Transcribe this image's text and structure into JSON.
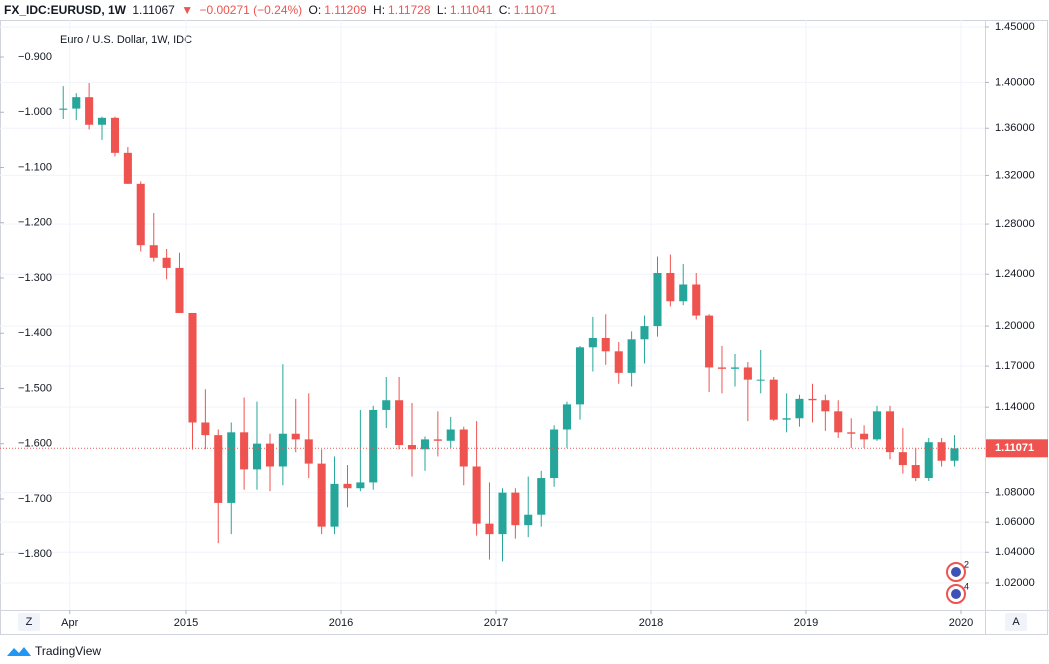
{
  "header": {
    "symbol": "FX_IDC:EURUSD, 1W",
    "last": "1.11067",
    "arrow": "▼",
    "change": "−0.00271 (−0.24%)",
    "o_label": "O:",
    "o": "1.11209",
    "h_label": "H:",
    "h": "1.11728",
    "l_label": "L:",
    "l": "1.11041",
    "c_label": "C:",
    "c": "1.11071"
  },
  "chart_data": {
    "type": "candlestick",
    "title": "Euro / U.S. Dollar, 1W, IDC",
    "up_color": "#26a69a",
    "down_color": "#ef5350",
    "log_scale": true,
    "grid": true,
    "x": [
      2014.208,
      2014.292,
      2014.375,
      2014.458,
      2014.542,
      2014.625,
      2014.708,
      2014.792,
      2014.875,
      2014.958,
      2015.042,
      2015.125,
      2015.208,
      2015.292,
      2015.375,
      2015.458,
      2015.542,
      2015.625,
      2015.708,
      2015.792,
      2015.875,
      2015.958,
      2016.042,
      2016.125,
      2016.208,
      2016.292,
      2016.375,
      2016.458,
      2016.542,
      2016.625,
      2016.708,
      2016.792,
      2016.875,
      2016.958,
      2017.042,
      2017.125,
      2017.208,
      2017.292,
      2017.375,
      2017.458,
      2017.542,
      2017.625,
      2017.708,
      2017.792,
      2017.875,
      2017.958,
      2018.042,
      2018.125,
      2018.208,
      2018.292,
      2018.375,
      2018.458,
      2018.542,
      2018.625,
      2018.708,
      2018.792,
      2018.875,
      2018.958,
      2019.042,
      2019.125,
      2019.208,
      2019.292,
      2019.375,
      2019.458,
      2019.542,
      2019.625,
      2019.708,
      2019.792,
      2019.875,
      2019.958
    ],
    "open": [
      1.376,
      1.377,
      1.387,
      1.363,
      1.369,
      1.339,
      1.313,
      1.263,
      1.253,
      1.245,
      1.21,
      1.129,
      1.12,
      1.073,
      1.122,
      1.096,
      1.114,
      1.098,
      1.121,
      1.117,
      1.1,
      1.057,
      1.086,
      1.083,
      1.087,
      1.138,
      1.145,
      1.113,
      1.11,
      1.117,
      1.116,
      1.124,
      1.098,
      1.059,
      1.052,
      1.08,
      1.058,
      1.065,
      1.09,
      1.124,
      1.142,
      1.184,
      1.191,
      1.181,
      1.165,
      1.19,
      1.2,
      1.241,
      1.219,
      1.232,
      1.208,
      1.169,
      1.168,
      1.169,
      1.16,
      1.16,
      1.131,
      1.132,
      1.146,
      1.145,
      1.137,
      1.122,
      1.121,
      1.117,
      1.137,
      1.108,
      1.099,
      1.09,
      1.115,
      1.102
    ],
    "high": [
      1.3967,
      1.3905,
      1.3995,
      1.37,
      1.37,
      1.344,
      1.315,
      1.289,
      1.26,
      1.257,
      1.21,
      1.153,
      1.124,
      1.129,
      1.147,
      1.144,
      1.121,
      1.1714,
      1.146,
      1.15,
      1.11,
      1.105,
      1.099,
      1.138,
      1.141,
      1.162,
      1.162,
      1.143,
      1.119,
      1.137,
      1.133,
      1.126,
      1.13,
      1.087,
      1.083,
      1.083,
      1.091,
      1.095,
      1.127,
      1.144,
      1.185,
      1.207,
      1.209,
      1.188,
      1.196,
      1.208,
      1.254,
      1.2556,
      1.248,
      1.241,
      1.209,
      1.185,
      1.179,
      1.173,
      1.182,
      1.162,
      1.15,
      1.149,
      1.157,
      1.149,
      1.145,
      1.132,
      1.127,
      1.141,
      1.141,
      1.125,
      1.111,
      1.118,
      1.118,
      1.12
    ],
    "low": [
      1.368,
      1.367,
      1.359,
      1.35,
      1.336,
      1.313,
      1.258,
      1.25,
      1.236,
      1.21,
      1.1098,
      1.11,
      1.046,
      1.052,
      1.082,
      1.082,
      1.081,
      1.085,
      1.108,
      1.09,
      1.052,
      1.052,
      1.07,
      1.081,
      1.082,
      1.125,
      1.11,
      1.091,
      1.095,
      1.105,
      1.111,
      1.085,
      1.051,
      1.0352,
      1.034,
      1.049,
      1.05,
      1.057,
      1.084,
      1.111,
      1.131,
      1.166,
      1.171,
      1.157,
      1.155,
      1.172,
      1.192,
      1.215,
      1.216,
      1.205,
      1.151,
      1.15,
      1.155,
      1.13,
      1.15,
      1.13,
      1.122,
      1.126,
      1.129,
      1.123,
      1.118,
      1.111,
      1.111,
      1.116,
      1.103,
      1.093,
      1.0879,
      1.088,
      1.098,
      1.098
    ],
    "close": [
      1.377,
      1.387,
      1.363,
      1.369,
      1.339,
      1.313,
      1.263,
      1.253,
      1.245,
      1.21,
      1.129,
      1.12,
      1.073,
      1.122,
      1.096,
      1.114,
      1.098,
      1.121,
      1.117,
      1.1,
      1.057,
      1.086,
      1.083,
      1.087,
      1.138,
      1.145,
      1.113,
      1.11,
      1.117,
      1.116,
      1.124,
      1.098,
      1.059,
      1.052,
      1.08,
      1.058,
      1.065,
      1.09,
      1.124,
      1.142,
      1.184,
      1.191,
      1.181,
      1.165,
      1.19,
      1.2,
      1.241,
      1.219,
      1.232,
      1.208,
      1.169,
      1.168,
      1.169,
      1.16,
      1.16,
      1.131,
      1.132,
      1.146,
      1.145,
      1.137,
      1.122,
      1.121,
      1.117,
      1.137,
      1.108,
      1.099,
      1.09,
      1.115,
      1.102,
      1.1107
    ],
    "xlim": [
      2013.8,
      2020.155
    ],
    "xticks": [
      {
        "value": 2014.25,
        "label": "Apr"
      },
      2015,
      2016,
      2017,
      2018,
      2019,
      2020
    ],
    "ylim": [
      1.0027,
      1.4564
    ],
    "yticks": [
      {
        "value": 1.02,
        "label": "1.02000"
      },
      {
        "value": 1.04,
        "label": "1.04000"
      },
      {
        "value": 1.06,
        "label": "1.06000"
      },
      {
        "value": 1.08,
        "label": "1.08000"
      },
      {
        "value": 1.14,
        "label": "1.14000"
      },
      {
        "value": 1.17,
        "label": "1.17000"
      },
      {
        "value": 1.2,
        "label": "1.20000"
      },
      {
        "value": 1.24,
        "label": "1.24000"
      },
      {
        "value": 1.28,
        "label": "1.28000"
      },
      {
        "value": 1.32,
        "label": "1.32000"
      },
      {
        "value": 1.36,
        "label": "1.36000"
      },
      {
        "value": 1.4,
        "label": "1.40000"
      },
      {
        "value": 1.45,
        "label": "1.45000"
      }
    ],
    "y2lim": [
      -1.901,
      -0.833
    ],
    "y2ticks": [
      {
        "value": -0.9,
        "label": "−0.900"
      },
      {
        "value": -1.0,
        "label": "−1.000"
      },
      {
        "value": -1.1,
        "label": "−1.100"
      },
      {
        "value": -1.2,
        "label": "−1.200"
      },
      {
        "value": -1.3,
        "label": "−1.300"
      },
      {
        "value": -1.4,
        "label": "−1.400"
      },
      {
        "value": -1.5,
        "label": "−1.500"
      },
      {
        "value": -1.6,
        "label": "−1.600"
      },
      {
        "value": -1.7,
        "label": "−1.700"
      },
      {
        "value": -1.8,
        "label": "−1.800"
      }
    ],
    "last_price": {
      "value": 1.11071,
      "label": "1.11071"
    },
    "events": [
      "2",
      "4"
    ]
  },
  "controls": {
    "left": "Z",
    "right": "A"
  },
  "footer": {
    "brand": "TradingView"
  }
}
